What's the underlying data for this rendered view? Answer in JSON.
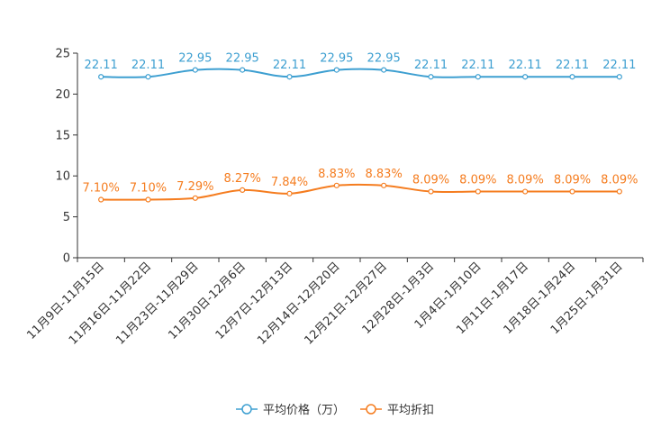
{
  "chart_data": {
    "type": "line",
    "title": "",
    "categories": [
      "11月9日-11月15日",
      "11月16日-11月22日",
      "11月23日-11月29日",
      "11月30日-12月6日",
      "12月7日-12月13日",
      "12月14日-12月20日",
      "12月21日-12月27日",
      "12月28日-1月3日",
      "1月4日-1月10日",
      "1月11日-1月17日",
      "1月18日-1月24日",
      "1月25日-1月31日"
    ],
    "series": [
      {
        "name": "平均价格（万）",
        "color": "#3d9fd1",
        "values": [
          22.11,
          22.11,
          22.95,
          22.95,
          22.11,
          22.95,
          22.95,
          22.11,
          22.11,
          22.11,
          22.11,
          22.11
        ],
        "labels": [
          "22.11",
          "22.11",
          "22.95",
          "22.95",
          "22.11",
          "22.95",
          "22.95",
          "22.11",
          "22.11",
          "22.11",
          "22.11",
          "22.11"
        ]
      },
      {
        "name": "平均折扣",
        "color": "#f57d20",
        "values": [
          7.1,
          7.1,
          7.29,
          8.27,
          7.84,
          8.83,
          8.83,
          8.09,
          8.09,
          8.09,
          8.09,
          8.09
        ],
        "labels": [
          "7.10%",
          "7.10%",
          "7.29%",
          "8.27%",
          "7.84%",
          "8.83%",
          "8.83%",
          "8.09%",
          "8.09%",
          "8.09%",
          "8.09%",
          "8.09%"
        ]
      }
    ],
    "ylim": [
      0,
      25
    ],
    "yticks": [
      0,
      5,
      10,
      15,
      20,
      25
    ],
    "xlabel": "",
    "ylabel": "",
    "grid": false,
    "legend": "bottom-center"
  }
}
